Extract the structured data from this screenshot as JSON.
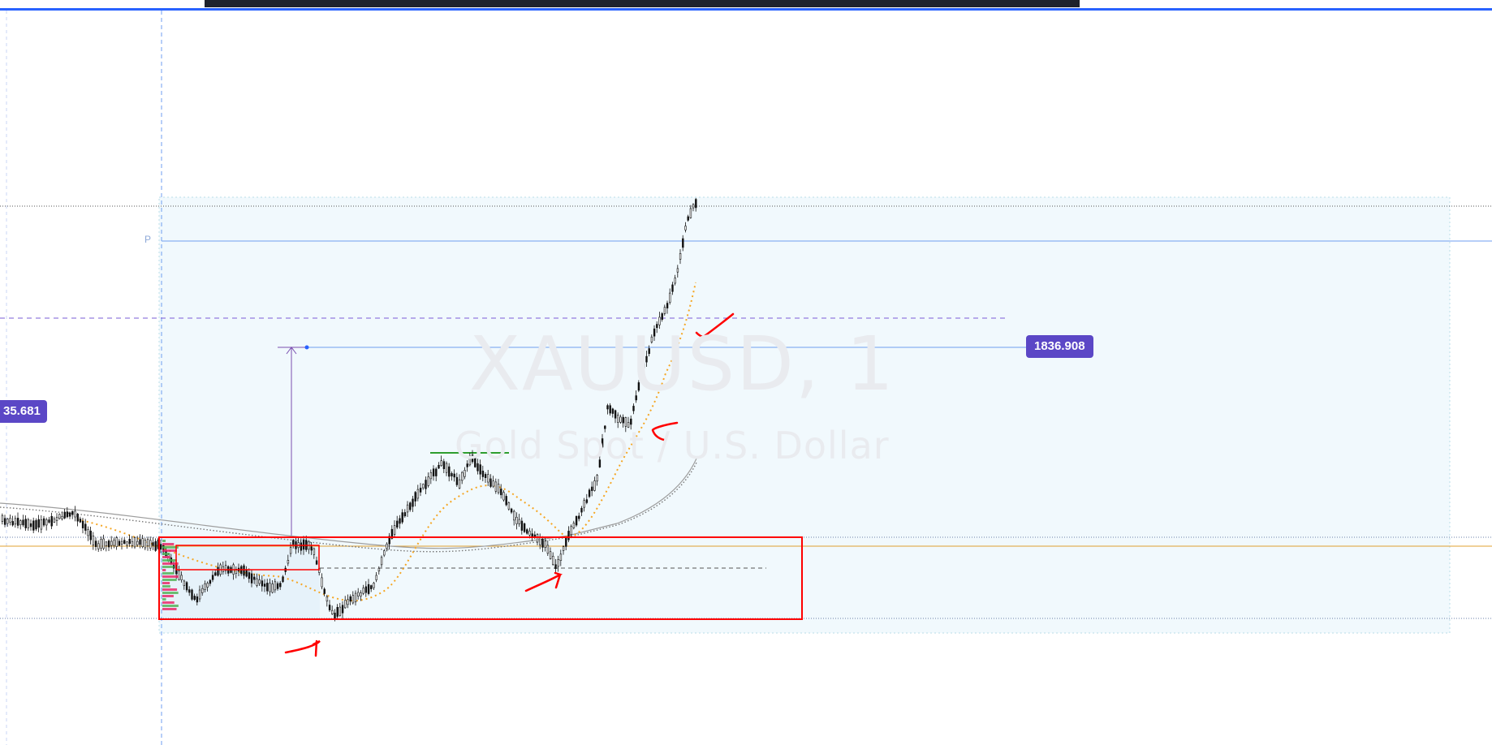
{
  "chart_data": {
    "type": "candlestick",
    "symbol": "XAUUSD, 1",
    "description": "Gold Spot / U.S. Dollar",
    "price_labels": {
      "left": "35.681",
      "target": "1836.908"
    },
    "line_label": "P",
    "series": [
      {
        "name": "price",
        "approx_path_y": [
          1834.0,
          1833.2,
          1833.9,
          1832.1,
          1834.6,
          1836.0
        ]
      }
    ],
    "annotations": [
      "red rectangle (consolidation range)",
      "red arrows",
      "red checkmark"
    ]
  },
  "colors": {
    "badge": "#5b47c6",
    "ma_orange": "#f5a623",
    "ma_gray": "#9e9e9e",
    "zone_fill": "#f1f9fd",
    "highlight": "#ff0000",
    "level_blue": "#6f9ef0"
  }
}
